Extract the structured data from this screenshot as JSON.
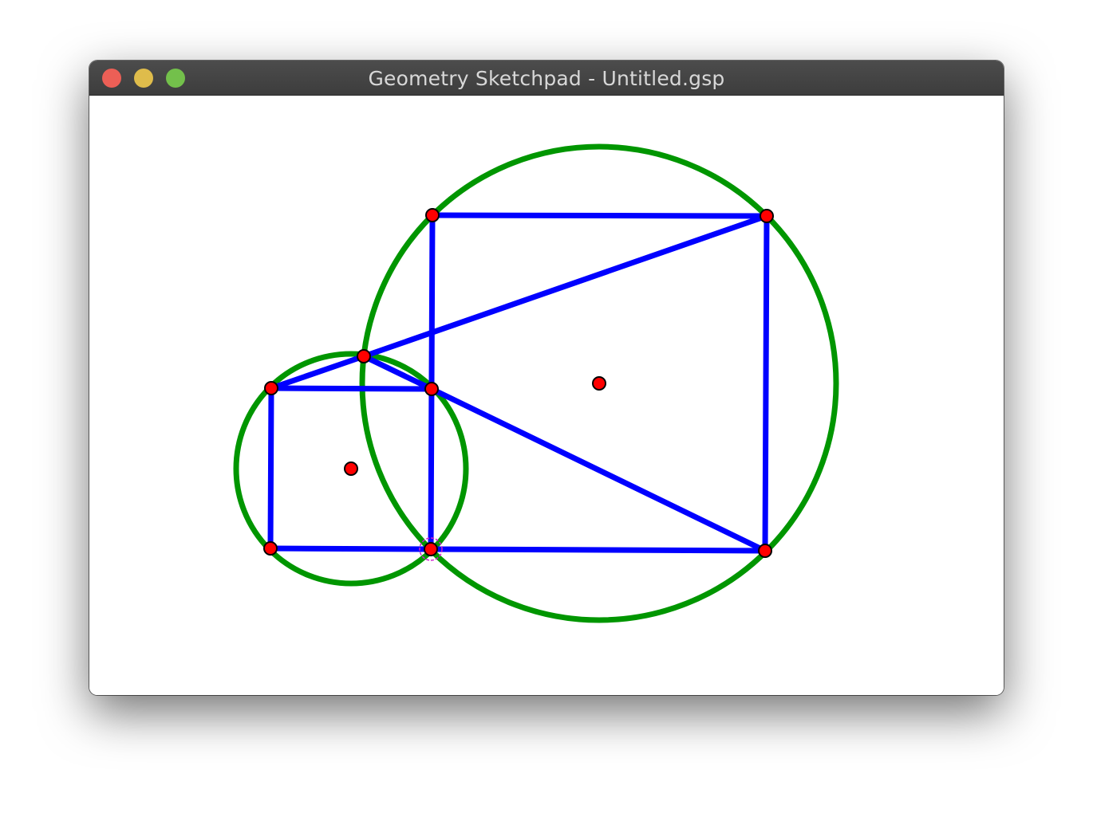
{
  "window": {
    "title": "Geometry Sketchpad - Untitled.gsp",
    "buttons": [
      {
        "name": "close",
        "color": "#ec5f56"
      },
      {
        "name": "minimize",
        "color": "#dfbc4b"
      },
      {
        "name": "zoom",
        "color": "#73c04b"
      }
    ]
  },
  "sketch": {
    "colors": {
      "circle": "#009600",
      "segment": "#0000ff",
      "point_fill": "#ff0000",
      "point_stroke": "#000000",
      "selection": "#d020d0"
    },
    "selected_point": "p-mid-bottom"
  }
}
